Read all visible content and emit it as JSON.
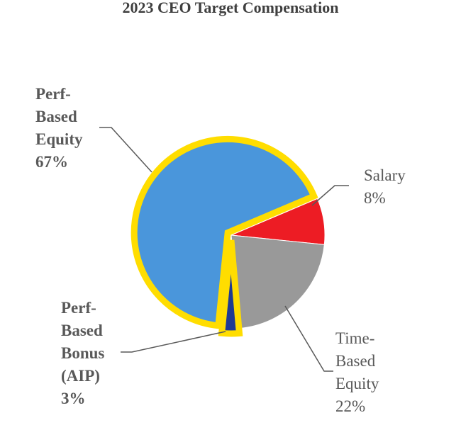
{
  "chart_data": {
    "type": "pie",
    "title": "2023 CEO Target Compensation",
    "slices": [
      {
        "key": "salary",
        "label_lines": [
          "Salary",
          "8%"
        ],
        "value": 8,
        "color": "#ed1c24",
        "highlight": false
      },
      {
        "key": "time_based_equity",
        "label_lines": [
          "Time-",
          "Based",
          "Equity",
          "22%"
        ],
        "value": 22,
        "color": "#999999",
        "highlight": false
      },
      {
        "key": "perf_based_bonus",
        "label_lines": [
          "Perf-",
          "Based",
          "Bonus",
          "(AIP)",
          "3%"
        ],
        "value": 3,
        "color": "#1f3a93",
        "highlight": true
      },
      {
        "key": "perf_based_equity",
        "label_lines": [
          "Perf-",
          "Based",
          "Equity",
          "67%"
        ],
        "value": 67,
        "color": "#4a96db",
        "highlight": true
      }
    ],
    "highlight_color": "#ffdd00",
    "legend": "none"
  }
}
